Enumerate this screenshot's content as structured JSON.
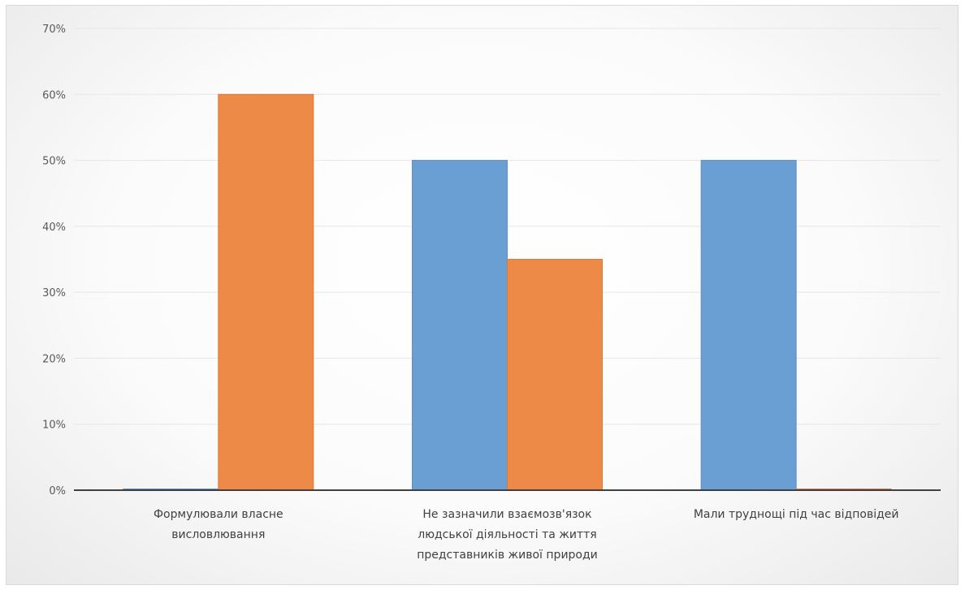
{
  "chart_data": {
    "type": "bar",
    "title": "",
    "xlabel": "",
    "ylabel": "",
    "ylim": [
      0,
      0.7
    ],
    "yticks": [
      "0%",
      "10%",
      "20%",
      "30%",
      "40%",
      "50%",
      "60%",
      "70%"
    ],
    "grid": true,
    "legend": "none",
    "categories": [
      [
        "Формулювали власне",
        "висловлювання"
      ],
      [
        "Не зазначили взаємозв'язок",
        "людської діяльності та життя",
        "представників живої природи"
      ],
      [
        "Мали труднощі під час відповідей"
      ]
    ],
    "series": [
      {
        "color": "#6a9fd4",
        "values": [
          0.0,
          0.5,
          0.5
        ]
      },
      {
        "color": "#ed8a47",
        "values": [
          0.6,
          0.35,
          0.0
        ]
      }
    ]
  }
}
